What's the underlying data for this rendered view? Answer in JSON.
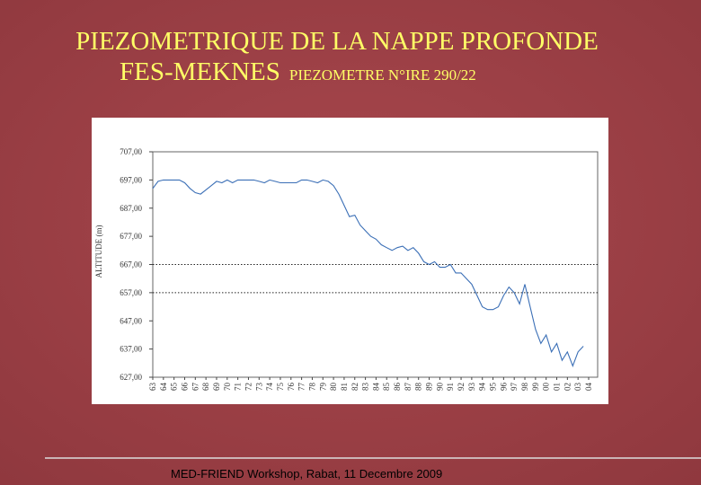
{
  "slide": {
    "title_line1": "PIEZOMETRIQUE DE LA NAPPE PROFONDE",
    "title_line2": "FES-MEKNES",
    "subtitle": "PIEZOMETRE  N°IRE 290/22",
    "footer": "MED-FRIEND Workshop, Rabat, 11 Decembre 2009"
  },
  "chart_data": {
    "type": "line",
    "y_label": "ALTITUDE (m)",
    "categories": [
      "63",
      null,
      "64",
      null,
      "65",
      null,
      "66",
      null,
      "67",
      null,
      "68",
      null,
      "69",
      null,
      "70",
      null,
      "71",
      null,
      "72",
      null,
      "73",
      null,
      "74",
      null,
      "75",
      null,
      "76",
      null,
      "77",
      null,
      "78",
      null,
      "79",
      null,
      "80",
      null,
      "81",
      null,
      "82",
      null,
      "83",
      null,
      "84",
      null,
      "85",
      null,
      "86",
      null,
      "87",
      null,
      "88",
      null,
      "89",
      null,
      "90",
      null,
      "91",
      null,
      "92",
      null,
      "93",
      null,
      "94",
      null,
      "95",
      null,
      "96",
      null,
      "97",
      null,
      "98",
      null,
      "99",
      null,
      "00",
      null,
      "01",
      null,
      "02",
      null,
      "03",
      null,
      "04"
    ],
    "series": [
      {
        "color": "#3b6fb6",
        "values": [
          694,
          696.5,
          697,
          697,
          697,
          697,
          696,
          694,
          692.5,
          692,
          693.5,
          695,
          696.5,
          696,
          697,
          696,
          697,
          697,
          697,
          697,
          696.5,
          696,
          697,
          696.5,
          696,
          696,
          696,
          696,
          697,
          697,
          696.5,
          696,
          697,
          696.5,
          695,
          692,
          688,
          684,
          684.5,
          681,
          679,
          677,
          676,
          674,
          673,
          672,
          673,
          673.5,
          672,
          673,
          671,
          668,
          667,
          668,
          666,
          666,
          667,
          664,
          664,
          662,
          660,
          656,
          652,
          651,
          651,
          652,
          656,
          659,
          657,
          653,
          660,
          652,
          644,
          639,
          642,
          636,
          639,
          633,
          636,
          631,
          636,
          638,
          null
        ]
      }
    ],
    "ylim": [
      627,
      707
    ],
    "yticks": [
      {
        "value": 627,
        "label": "627,00"
      },
      {
        "value": 637,
        "label": "637,00"
      },
      {
        "value": 647,
        "label": "647,00"
      },
      {
        "value": 657,
        "label": "657,00"
      },
      {
        "value": 667,
        "label": "667,00"
      },
      {
        "value": 677,
        "label": "677,00"
      },
      {
        "value": 687,
        "label": "687,00"
      },
      {
        "value": 697,
        "label": "697,00"
      },
      {
        "value": 707,
        "label": "707,00"
      }
    ],
    "dotted_grid": [
      657,
      667
    ]
  }
}
